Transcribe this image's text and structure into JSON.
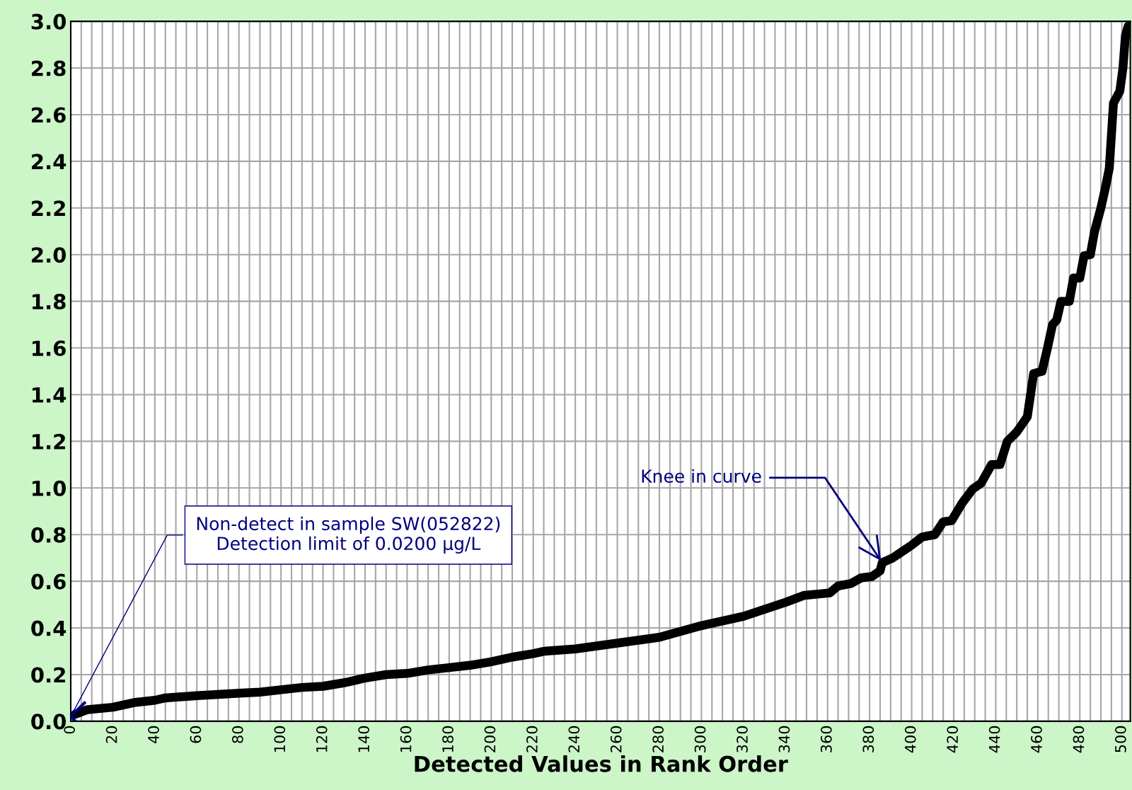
{
  "chart_data": {
    "type": "line",
    "xlabel": "Detected Values in Rank Order",
    "series": [
      {
        "color": "#000000",
        "marker": "none",
        "line_style": "solid",
        "x": [
          2,
          8,
          20,
          30,
          40,
          45,
          60,
          80,
          90,
          100,
          110,
          120,
          130,
          140,
          150,
          160,
          170,
          180,
          190,
          200,
          210,
          220,
          225,
          240,
          260,
          280,
          300,
          320,
          340,
          349,
          361,
          365,
          371,
          376,
          381,
          385,
          386,
          391,
          400,
          405,
          411,
          415,
          419,
          424,
          429,
          433,
          438,
          442,
          445.5,
          450,
          455,
          458,
          462,
          464.6,
          467,
          469,
          471,
          475,
          477,
          480,
          482,
          485,
          487,
          490,
          492,
          494,
          496,
          499,
          500.5,
          501.7,
          503
        ],
        "values": [
          0.03,
          0.05,
          0.06,
          0.08,
          0.09,
          0.1,
          0.11,
          0.12,
          0.125,
          0.135,
          0.145,
          0.15,
          0.165,
          0.185,
          0.2,
          0.205,
          0.22,
          0.23,
          0.24,
          0.255,
          0.275,
          0.29,
          0.3,
          0.31,
          0.335,
          0.36,
          0.41,
          0.45,
          0.51,
          0.54,
          0.55,
          0.58,
          0.59,
          0.615,
          0.62,
          0.645,
          0.68,
          0.7,
          0.755,
          0.79,
          0.8,
          0.855,
          0.86,
          0.935,
          0.995,
          1.02,
          1.1,
          1.1,
          1.2,
          1.24,
          1.305,
          1.49,
          1.5,
          1.6,
          1.7,
          1.72,
          1.8,
          1.8,
          1.9,
          1.9,
          1.995,
          2.0,
          2.1,
          2.2,
          2.28,
          2.37,
          2.65,
          2.7,
          2.8,
          2.94,
          2.98
        ]
      },
      {
        "type": "scatter",
        "color": "#000080",
        "marker": "cross",
        "x": [
          0
        ],
        "values": [
          0.02
        ]
      }
    ],
    "annotations": [
      {
        "text": "Non-detect in sample SW(052822)\nDetection limit of 0.0200 µg/L",
        "x": 0,
        "y": 0.02
      },
      {
        "text": "Knee in curve",
        "x": 386,
        "y": 0.68
      }
    ],
    "xlim": [
      0,
      504
    ],
    "ylim": [
      0,
      3.0
    ],
    "xticks": [
      0,
      {
        "value": 5,
        "label": null
      },
      {
        "value": 10,
        "label": null
      },
      {
        "value": 15,
        "label": null
      },
      20,
      {
        "value": 25,
        "label": null
      },
      {
        "value": 30,
        "label": null
      },
      {
        "value": 35,
        "label": null
      },
      40,
      {
        "value": 45,
        "label": null
      },
      {
        "value": 50,
        "label": null
      },
      {
        "value": 55,
        "label": null
      },
      60,
      {
        "value": 65,
        "label": null
      },
      {
        "value": 70,
        "label": null
      },
      {
        "value": 75,
        "label": null
      },
      80,
      {
        "value": 85,
        "label": null
      },
      {
        "value": 90,
        "label": null
      },
      {
        "value": 95,
        "label": null
      },
      100,
      {
        "value": 105,
        "label": null
      },
      {
        "value": 110,
        "label": null
      },
      {
        "value": 115,
        "label": null
      },
      120,
      {
        "value": 125,
        "label": null
      },
      {
        "value": 130,
        "label": null
      },
      {
        "value": 135,
        "label": null
      },
      140,
      {
        "value": 145,
        "label": null
      },
      {
        "value": 150,
        "label": null
      },
      {
        "value": 155,
        "label": null
      },
      160,
      {
        "value": 165,
        "label": null
      },
      {
        "value": 170,
        "label": null
      },
      {
        "value": 175,
        "label": null
      },
      180,
      {
        "value": 185,
        "label": null
      },
      {
        "value": 190,
        "label": null
      },
      {
        "value": 195,
        "label": null
      },
      200,
      {
        "value": 205,
        "label": null
      },
      {
        "value": 210,
        "label": null
      },
      {
        "value": 215,
        "label": null
      },
      220,
      {
        "value": 225,
        "label": null
      },
      {
        "value": 230,
        "label": null
      },
      {
        "value": 235,
        "label": null
      },
      240,
      {
        "value": 245,
        "label": null
      },
      {
        "value": 250,
        "label": null
      },
      {
        "value": 255,
        "label": null
      },
      260,
      {
        "value": 265,
        "label": null
      },
      {
        "value": 270,
        "label": null
      },
      {
        "value": 275,
        "label": null
      },
      280,
      {
        "value": 285,
        "label": null
      },
      {
        "value": 290,
        "label": null
      },
      {
        "value": 295,
        "label": null
      },
      300,
      {
        "value": 305,
        "label": null
      },
      {
        "value": 310,
        "label": null
      },
      {
        "value": 315,
        "label": null
      },
      320,
      {
        "value": 325,
        "label": null
      },
      {
        "value": 330,
        "label": null
      },
      {
        "value": 335,
        "label": null
      },
      340,
      {
        "value": 345,
        "label": null
      },
      {
        "value": 350,
        "label": null
      },
      {
        "value": 355,
        "label": null
      },
      360,
      {
        "value": 365,
        "label": null
      },
      {
        "value": 370,
        "label": null
      },
      {
        "value": 375,
        "label": null
      },
      380,
      {
        "value": 385,
        "label": null
      },
      {
        "value": 390,
        "label": null
      },
      {
        "value": 395,
        "label": null
      },
      400,
      {
        "value": 405,
        "label": null
      },
      {
        "value": 410,
        "label": null
      },
      {
        "value": 415,
        "label": null
      },
      420,
      {
        "value": 425,
        "label": null
      },
      {
        "value": 430,
        "label": null
      },
      {
        "value": 435,
        "label": null
      },
      440,
      {
        "value": 445,
        "label": null
      },
      {
        "value": 450,
        "label": null
      },
      {
        "value": 455,
        "label": null
      },
      460,
      {
        "value": 465,
        "label": null
      },
      {
        "value": 470,
        "label": null
      },
      {
        "value": 475,
        "label": null
      },
      480,
      {
        "value": 485,
        "label": null
      },
      {
        "value": 490,
        "label": null
      },
      {
        "value": 495,
        "label": null
      },
      500
    ],
    "yticks": [
      {
        "value": 0,
        "label": "0.0"
      },
      0.2,
      0.4,
      0.6,
      0.8,
      {
        "value": 1,
        "label": "1.0"
      },
      1.2,
      1.4,
      1.6,
      1.8,
      {
        "value": 2,
        "label": "2.0"
      },
      2.2,
      2.4,
      2.6,
      2.8,
      {
        "value": 3,
        "label": "3.0"
      }
    ],
    "grid": true
  }
}
